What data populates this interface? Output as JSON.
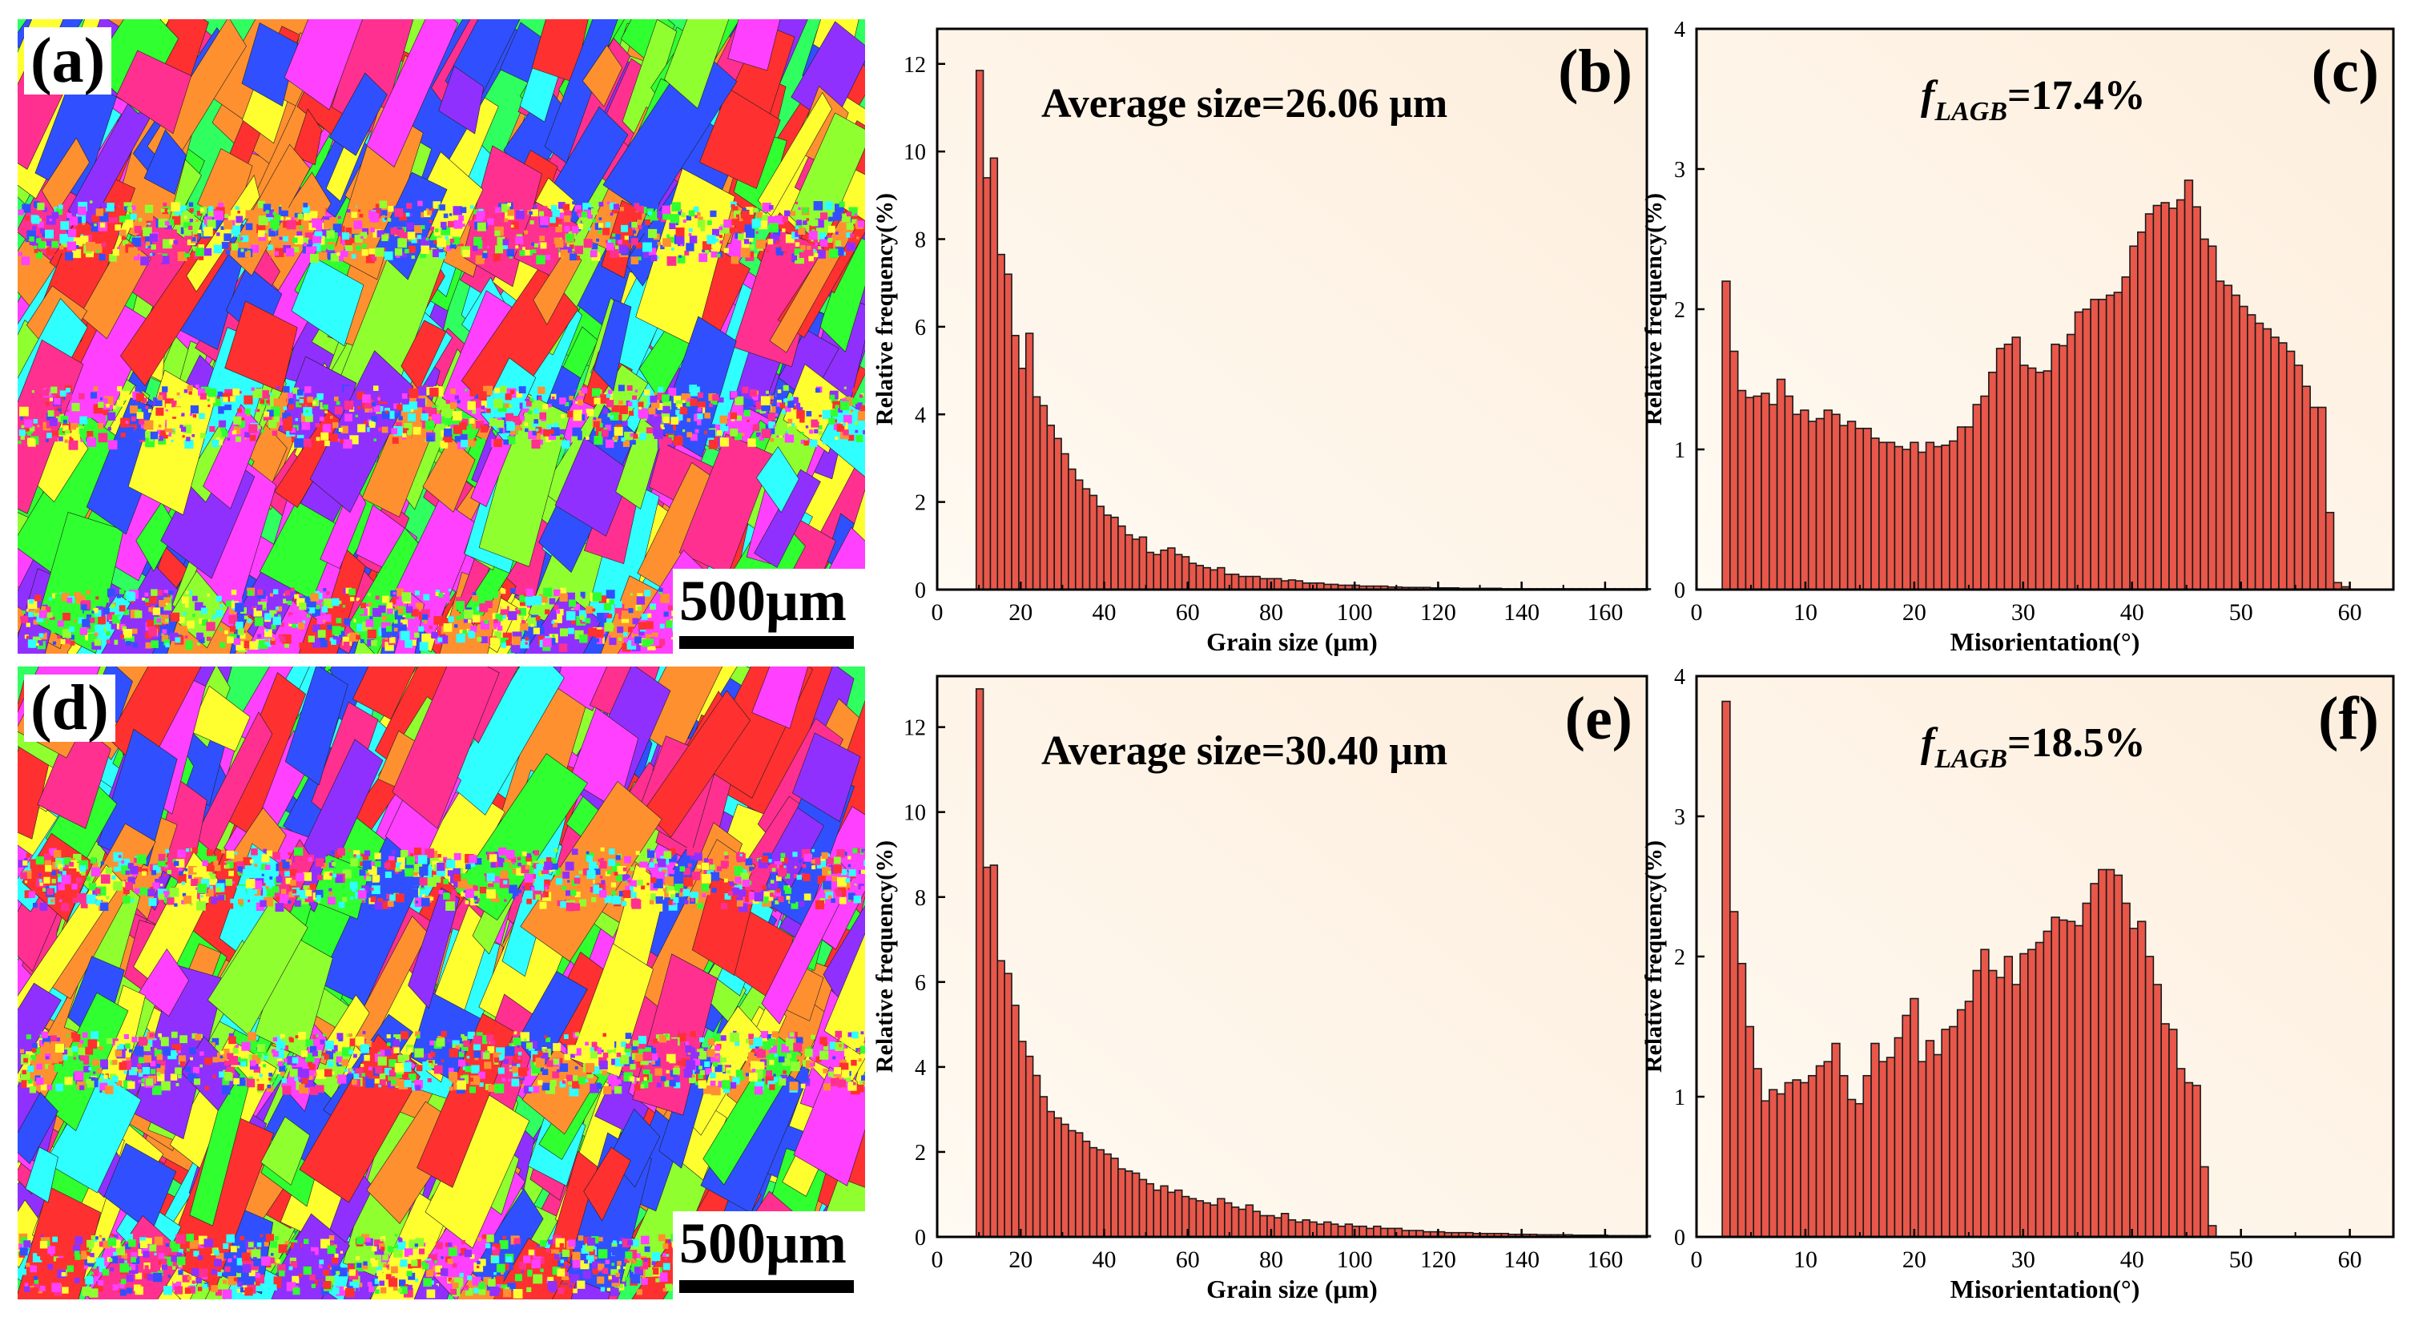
{
  "figure": {
    "ebsd_maps": [
      {
        "panel": "(a)",
        "scale_label": "500μm",
        "description_colors": [
          "#ff3030",
          "#30ff30",
          "#3050ff",
          "#ff40ff",
          "#ffff30",
          "#30ffff",
          "#ff9030",
          "#9030ff",
          "#ff3090",
          "#90ff30"
        ]
      },
      {
        "panel": "(d)",
        "scale_label": "500μm",
        "description_colors": [
          "#ff3030",
          "#30ff30",
          "#3050ff",
          "#ff40ff",
          "#ffff30",
          "#30ffff",
          "#ff9030",
          "#9030ff",
          "#ff3090",
          "#90ff30"
        ]
      }
    ]
  },
  "chart_data": [
    {
      "panel": "(b)",
      "type": "bar",
      "annotation": "Average size=26.06 μm",
      "xlabel": "Grain size (μm)",
      "ylabel": "Relative frequency(%)",
      "xlim": [
        0,
        170
      ],
      "ylim": [
        0,
        12.8
      ],
      "xticks": [
        0,
        20,
        40,
        60,
        80,
        100,
        120,
        140,
        160
      ],
      "yticks": [
        0,
        2,
        4,
        6,
        8,
        10,
        12
      ],
      "bin_width": 1.7,
      "x_start": 9.35,
      "values": [
        11.85,
        9.4,
        9.85,
        7.65,
        7.2,
        5.8,
        5.05,
        5.85,
        4.4,
        4.2,
        3.75,
        3.45,
        3.1,
        2.75,
        2.5,
        2.3,
        2.15,
        1.9,
        1.7,
        1.65,
        1.45,
        1.25,
        1.15,
        1.2,
        0.85,
        0.8,
        0.9,
        0.95,
        0.8,
        0.75,
        0.6,
        0.55,
        0.5,
        0.45,
        0.5,
        0.35,
        0.35,
        0.3,
        0.3,
        0.3,
        0.25,
        0.25,
        0.25,
        0.2,
        0.22,
        0.2,
        0.15,
        0.15,
        0.15,
        0.12,
        0.12,
        0.1,
        0.1,
        0.1,
        0.08,
        0.08,
        0.08,
        0.08,
        0.06,
        0.06,
        0.05,
        0.05,
        0.05,
        0.05,
        0.04,
        0.04,
        0.04,
        0.04,
        0.03,
        0.03,
        0.03,
        0.03,
        0.03,
        0.03,
        0.02,
        0.02,
        0.02,
        0.02,
        0.02,
        0.02,
        0.02,
        0.02,
        0.02,
        0.02,
        0.02,
        0.02,
        0.02,
        0.02,
        0.02,
        0.02,
        0.02,
        0.02,
        0.02,
        0.02,
        0.02
      ]
    },
    {
      "panel": "(c)",
      "type": "bar",
      "annotation_prefix": "f",
      "annotation_sub": "LAGB",
      "annotation_value": "=17.4%",
      "xlabel": "Misorientation(°)",
      "ylabel": "Relative frequency(%)",
      "xlim": [
        0,
        64
      ],
      "ylim": [
        0,
        4
      ],
      "xticks": [
        0,
        10,
        20,
        30,
        40,
        50,
        60
      ],
      "yticks": [
        0,
        1,
        2,
        3,
        4
      ],
      "bin_width": 0.72,
      "x_start": 2.36,
      "values": [
        2.2,
        1.7,
        1.42,
        1.37,
        1.38,
        1.4,
        1.32,
        1.5,
        1.38,
        1.25,
        1.28,
        1.2,
        1.22,
        1.28,
        1.25,
        1.17,
        1.2,
        1.15,
        1.15,
        1.08,
        1.05,
        1.05,
        1.02,
        1.0,
        1.05,
        0.98,
        1.05,
        1.02,
        1.03,
        1.06,
        1.16,
        1.16,
        1.32,
        1.38,
        1.55,
        1.72,
        1.75,
        1.8,
        1.6,
        1.58,
        1.55,
        1.56,
        1.75,
        1.74,
        1.82,
        1.98,
        2.0,
        2.07,
        2.07,
        2.1,
        2.12,
        2.23,
        2.45,
        2.55,
        2.68,
        2.74,
        2.76,
        2.72,
        2.78,
        2.92,
        2.73,
        2.5,
        2.45,
        2.2,
        2.17,
        2.1,
        2.02,
        1.96,
        1.9,
        1.86,
        1.8,
        1.76,
        1.7,
        1.6,
        1.45,
        1.3,
        1.3,
        0.55,
        0.05,
        0.02
      ]
    },
    {
      "panel": "(e)",
      "type": "bar",
      "annotation": "Average size=30.40 μm",
      "xlabel": "Grain size (μm)",
      "ylabel": "Relative frequency(%)",
      "xlim": [
        0,
        170
      ],
      "ylim": [
        0,
        13.2
      ],
      "xticks": [
        0,
        20,
        40,
        60,
        80,
        100,
        120,
        140,
        160
      ],
      "yticks": [
        0,
        2,
        4,
        6,
        8,
        10,
        12
      ],
      "bin_width": 1.7,
      "x_start": 9.35,
      "values": [
        12.9,
        8.7,
        8.75,
        6.5,
        6.2,
        5.45,
        4.6,
        4.25,
        3.8,
        3.3,
        2.95,
        2.8,
        2.65,
        2.5,
        2.45,
        2.25,
        2.1,
        2.05,
        1.95,
        1.85,
        1.6,
        1.55,
        1.5,
        1.35,
        1.25,
        1.1,
        1.2,
        1.05,
        1.1,
        0.95,
        0.9,
        0.85,
        0.8,
        0.75,
        0.9,
        0.8,
        0.7,
        0.65,
        0.75,
        0.6,
        0.5,
        0.5,
        0.45,
        0.55,
        0.4,
        0.35,
        0.4,
        0.35,
        0.3,
        0.35,
        0.3,
        0.25,
        0.3,
        0.25,
        0.25,
        0.2,
        0.25,
        0.2,
        0.2,
        0.2,
        0.15,
        0.15,
        0.15,
        0.12,
        0.12,
        0.12,
        0.1,
        0.1,
        0.1,
        0.1,
        0.08,
        0.08,
        0.08,
        0.08,
        0.08,
        0.06,
        0.06,
        0.06,
        0.06,
        0.05,
        0.05,
        0.05,
        0.05,
        0.05,
        0.04,
        0.04,
        0.04,
        0.04,
        0.04,
        0.03,
        0.03,
        0.03,
        0.03,
        0.03,
        0.03
      ]
    },
    {
      "panel": "(f)",
      "type": "bar",
      "annotation_prefix": "f",
      "annotation_sub": "LAGB",
      "annotation_value": "=18.5%",
      "xlabel": "Misorientation(°)",
      "ylabel": "Relative frequency(%)",
      "xlim": [
        0,
        64
      ],
      "ylim": [
        0,
        4
      ],
      "xticks": [
        0,
        10,
        20,
        30,
        40,
        50,
        60
      ],
      "yticks": [
        0,
        1,
        2,
        3,
        4
      ],
      "bin_width": 0.72,
      "x_start": 2.36,
      "values": [
        3.82,
        2.32,
        1.95,
        1.5,
        1.2,
        0.97,
        1.05,
        1.02,
        1.1,
        1.12,
        1.1,
        1.15,
        1.22,
        1.25,
        1.38,
        1.15,
        0.98,
        0.95,
        1.15,
        1.38,
        1.25,
        1.28,
        1.42,
        1.58,
        1.7,
        1.25,
        1.4,
        1.3,
        1.48,
        1.5,
        1.62,
        1.68,
        1.9,
        2.05,
        1.9,
        1.85,
        2.0,
        1.8,
        2.02,
        2.05,
        2.1,
        2.18,
        2.28,
        2.26,
        2.25,
        2.22,
        2.38,
        2.52,
        2.62,
        2.62,
        2.58,
        2.38,
        2.2,
        2.25,
        2.0,
        1.8,
        1.52,
        1.48,
        1.2,
        1.1,
        1.08,
        0.5,
        0.08
      ]
    }
  ]
}
